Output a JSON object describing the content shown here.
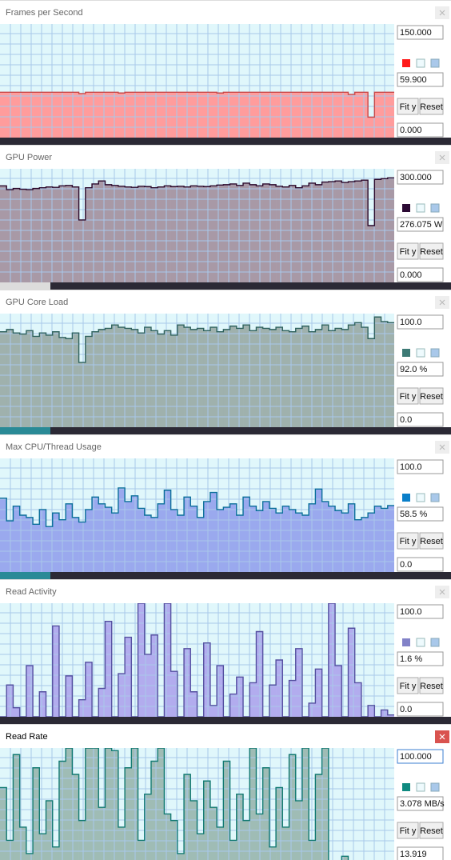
{
  "panels": [
    {
      "title": "Frames per Second",
      "scale": {
        "max": {
          "value": 150,
          "label": "150.000"
        },
        "min": {
          "value": 0,
          "label": "0.000"
        }
      },
      "current": "59.900",
      "color": "#ff1a1a",
      "fill": "#ff9c9c",
      "line": "#c84848",
      "values": [
        59.9,
        59.9,
        59.9,
        59.9,
        59.9,
        59.9,
        59.9,
        59.9,
        59.9,
        59.9,
        59.9,
        59.9,
        58.2,
        59.9,
        59.9,
        59.9,
        59.9,
        59.9,
        58.9,
        59.9,
        59.9,
        59.9,
        59.9,
        59.9,
        59.9,
        59.9,
        59.9,
        59.9,
        59.9,
        59.9,
        59.9,
        59.9,
        59.9,
        58.9,
        59.9,
        59.9,
        59.9,
        59.9,
        59.9,
        59.9,
        59.9,
        59.9,
        59.9,
        59.9,
        59.9,
        59.9,
        59.9,
        59.9,
        59.9,
        59.9,
        59.9,
        59.9,
        59.9,
        57.0,
        59.9,
        59.9,
        27.0,
        59.9,
        59.9,
        59.9
      ]
    },
    {
      "title": "GPU Power",
      "scale": {
        "max": {
          "value": 300,
          "label": "300.000"
        },
        "min": {
          "value": 0,
          "label": "0.000"
        }
      },
      "current": "276.075 W",
      "color": "#2c0a34",
      "fill": "#a899a6",
      "line": "#2c0a2c",
      "values": [
        255,
        245,
        248,
        246,
        245,
        248,
        250,
        252,
        251,
        255,
        256,
        252,
        165,
        250,
        260,
        268,
        258,
        256,
        254,
        252,
        251,
        254,
        253,
        250,
        252,
        255,
        253,
        254,
        252,
        255,
        254,
        253,
        255,
        257,
        258,
        260,
        256,
        262,
        258,
        255,
        260,
        258,
        254,
        252,
        256,
        250,
        255,
        262,
        258,
        265,
        266,
        268,
        264,
        266,
        268,
        270,
        150,
        272,
        274,
        276
      ]
    },
    {
      "title": "GPU Core Load",
      "scale": {
        "max": {
          "value": 100,
          "label": "100.0"
        },
        "min": {
          "value": 0,
          "label": "0.0"
        }
      },
      "current": "92.0 %",
      "color": "#3d7a75",
      "fill": "#9fb1ad",
      "line": "#2f625e",
      "values": [
        84,
        86,
        83,
        82,
        85,
        80,
        83,
        81,
        84,
        79,
        78,
        83,
        57,
        80,
        84,
        86,
        87,
        90,
        88,
        87,
        86,
        83,
        88,
        85,
        82,
        85,
        81,
        90,
        88,
        86,
        87,
        85,
        88,
        84,
        86,
        89,
        87,
        90,
        85,
        88,
        87,
        86,
        88,
        85,
        84,
        87,
        89,
        84,
        86,
        90,
        85,
        87,
        86,
        90,
        92,
        88,
        78,
        97,
        93,
        92
      ]
    },
    {
      "title": "Max CPU/Thread Usage",
      "scale": {
        "max": {
          "value": 100,
          "label": "100.0"
        },
        "min": {
          "value": 0,
          "label": "0.0"
        }
      },
      "current": "58.5 %",
      "color": "#0a7fc9",
      "fill": "#9aa9ee",
      "line": "#0a6f9a",
      "values": [
        65,
        45,
        58,
        50,
        48,
        42,
        55,
        40,
        52,
        46,
        60,
        48,
        44,
        55,
        66,
        60,
        57,
        52,
        74,
        62,
        67,
        56,
        50,
        48,
        60,
        72,
        55,
        50,
        66,
        58,
        48,
        62,
        70,
        55,
        57,
        60,
        50,
        66,
        58,
        54,
        62,
        56,
        52,
        58,
        55,
        52,
        50,
        60,
        73,
        62,
        58,
        54,
        52,
        60,
        46,
        48,
        52,
        58,
        56,
        58.5
      ]
    },
    {
      "title": "Read Activity",
      "scale": {
        "max": {
          "value": 100,
          "label": "100.0"
        },
        "min": {
          "value": 0,
          "label": "0.0"
        }
      },
      "current": "1.6 %",
      "color": "#8282c8",
      "fill": "#b2acee",
      "line": "#5550a0",
      "values": [
        0,
        28,
        8,
        0,
        45,
        0,
        22,
        0,
        80,
        0,
        36,
        0,
        15,
        48,
        0,
        25,
        84,
        0,
        38,
        70,
        0,
        100,
        55,
        72,
        0,
        100,
        40,
        0,
        60,
        22,
        0,
        65,
        10,
        45,
        0,
        20,
        35,
        0,
        30,
        75,
        0,
        28,
        50,
        0,
        32,
        60,
        0,
        12,
        42,
        0,
        100,
        45,
        0,
        78,
        30,
        0,
        10,
        0,
        6,
        1.6
      ]
    },
    {
      "title": "Read Rate",
      "scale": {
        "max": {
          "value": 100,
          "label": "100.000"
        },
        "min": {
          "value": 13.919,
          "label": "13.919"
        }
      },
      "current": "3.078 MB/s",
      "color": "#0f8a80",
      "fill": "#9fbcb5",
      "line": "#127a72",
      "values": [
        70,
        30,
        95,
        40,
        20,
        85,
        35,
        60,
        25,
        90,
        100,
        80,
        45,
        100,
        100,
        55,
        100,
        98,
        40,
        85,
        100,
        30,
        65,
        90,
        100,
        50,
        45,
        20,
        80,
        60,
        35,
        75,
        55,
        40,
        90,
        30,
        65,
        45,
        100,
        50,
        85,
        25,
        70,
        40,
        95,
        60,
        100,
        30,
        80,
        100,
        10,
        5,
        18,
        0,
        0,
        8,
        0,
        14,
        5,
        3.078
      ]
    }
  ],
  "buttons": {
    "fit": "Fit y",
    "reset": "Reset"
  }
}
